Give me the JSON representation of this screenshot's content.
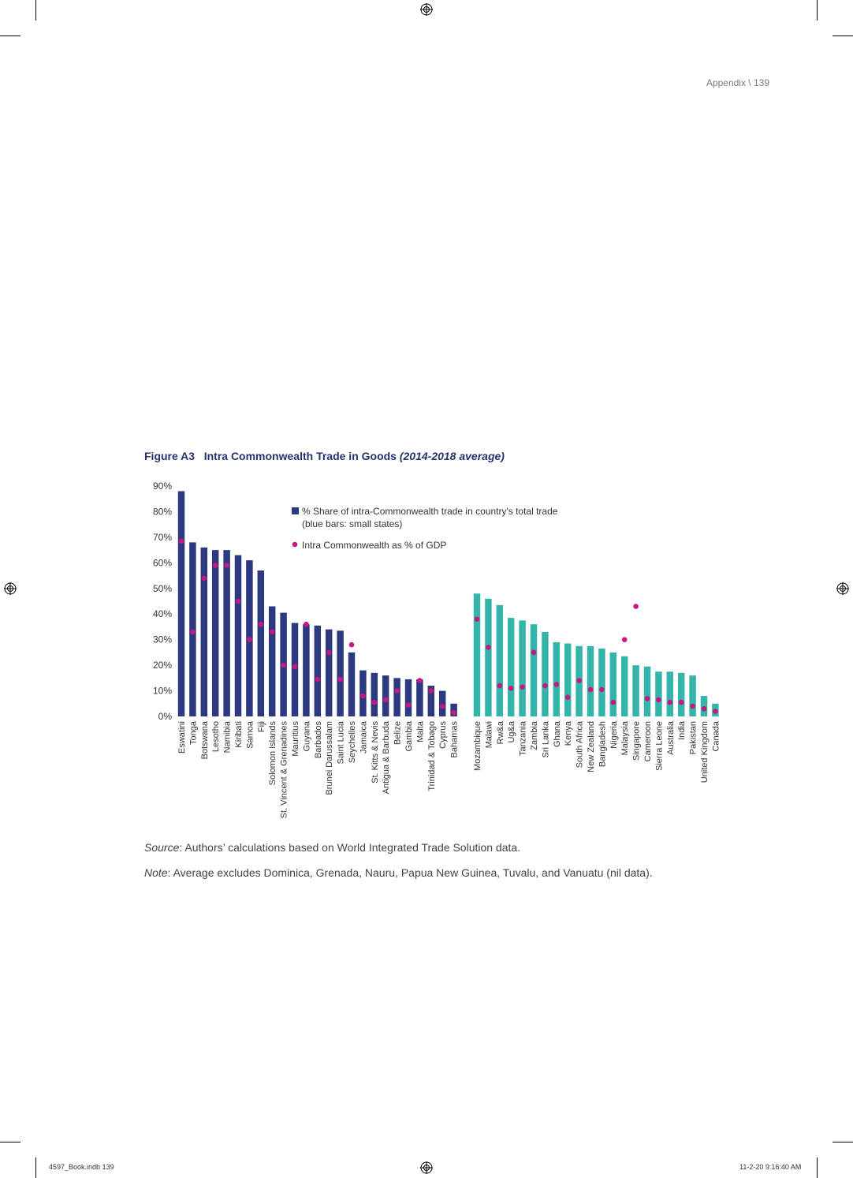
{
  "page": {
    "header": "Appendix \\ 139",
    "figure_label": "Figure A3",
    "figure_title": "Intra Commonwealth Trade in Goods",
    "figure_subtitle": "(2014-2018 average)",
    "source_label": "Source",
    "source_text": ": Authors’ calculations based on World Integrated Trade Solution data.",
    "note_label": "Note",
    "note_text": ": Average excludes Dominica, Grenada, Nauru, Papua New Guinea, Tuvalu, and Vanuatu (nil data).",
    "slug_left": "4597_Book.indb   139",
    "slug_right": "11-2-20   9:16:40 AM"
  },
  "colors": {
    "small_states_bar": "#2b3a80",
    "other_bar": "#35b5aa",
    "gdp_dot": "#c8177f",
    "axis_text": "#333333"
  },
  "chart_data": {
    "type": "bar",
    "title": "Intra Commonwealth Trade in Goods (2014-2018 average)",
    "ylabel": "",
    "xlabel": "",
    "ylim": [
      0,
      90
    ],
    "yticks": [
      "0%",
      "10%",
      "20%",
      "30%",
      "40%",
      "50%",
      "60%",
      "70%",
      "80%",
      "90%"
    ],
    "legend": {
      "bar_label_line1": "% Share of intra-Commonwealth trade in country's total trade",
      "bar_label_line2": "(blue bars: small states)",
      "dot_label": "Intra Commonwealth as % of GDP"
    },
    "series": [
      {
        "name": "% Share of intra-Commonwealth trade in country's total trade",
        "group": "small states",
        "categories": [
          "Eswatini",
          "Tonga",
          "Botswana",
          "Lesotho",
          "Namibia",
          "Kiribati",
          "Samoa",
          "Fiji",
          "Solomon Islands",
          "St. Vincent & Grenadines",
          "Mauritius",
          "Guyana",
          "Barbados",
          "Brunei Darussalam",
          "Saint Lucia",
          "Seychelles",
          "Jamaica",
          "St. Kitts & Nevis",
          "Antigua & Barbuda",
          "Belize",
          "Gambia",
          "Malta",
          "Trinidad & Tobago",
          "Cyprus",
          "Bahamas"
        ],
        "values": [
          88,
          68,
          66,
          65,
          65,
          63,
          61,
          57,
          43,
          40.5,
          36.5,
          36,
          35.5,
          34,
          33.5,
          25,
          18,
          17,
          16,
          15,
          14.5,
          14.5,
          12,
          10,
          5
        ],
        "gdp_values": [
          68.5,
          33,
          54,
          59,
          59,
          45,
          30,
          36,
          33,
          20,
          19.5,
          36,
          14.5,
          25,
          14.5,
          28,
          8,
          5.5,
          6.5,
          10,
          4.5,
          14,
          10,
          4,
          1.5
        ]
      },
      {
        "name": "% Share of intra-Commonwealth trade in country's total trade",
        "group": "other members",
        "categories": [
          "Mozambique",
          "Malawi",
          "Rw&a",
          "Ug&a",
          "Tanzania",
          "Zambia",
          "Sri Lanka",
          "Ghana",
          "Kenya",
          "South Africa",
          "New Zealand",
          "Bangladesh",
          "Nigeria",
          "Malaysia",
          "Singapore",
          "Cameroon",
          "Sierra Leone",
          "Australia",
          "India",
          "Pakistan",
          "United Kingdom",
          "Canada"
        ],
        "values": [
          48,
          46,
          43.5,
          38.5,
          37.5,
          36,
          33,
          29,
          28.5,
          27.5,
          27.5,
          26.5,
          25,
          23.5,
          20,
          19.5,
          17.5,
          17.5,
          17,
          16,
          8,
          5
        ],
        "gdp_values": [
          38,
          27,
          12,
          11,
          11.5,
          25,
          12,
          12.5,
          7.5,
          14,
          10.5,
          10.5,
          5.5,
          30,
          43,
          7,
          6.5,
          5.5,
          5.5,
          4,
          3,
          2
        ]
      }
    ]
  }
}
